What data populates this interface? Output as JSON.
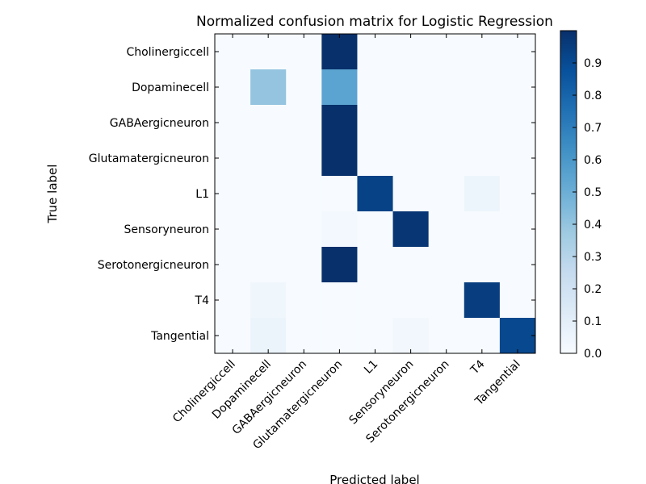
{
  "chart_data": {
    "type": "heatmap",
    "title": "Normalized confusion matrix for Logistic Regression",
    "xlabel": "Predicted label",
    "ylabel": "True label",
    "x_categories": [
      "Cholinergiccell",
      "Dopaminecell",
      "GABAergicneuron",
      "Glutamatergicneuron",
      "L1",
      "Sensoryneuron",
      "Serotonergicneuron",
      "T4",
      "Tangential"
    ],
    "y_categories": [
      "Cholinergiccell",
      "Dopaminecell",
      "GABAergicneuron",
      "Glutamatergicneuron",
      "L1",
      "Sensoryneuron",
      "Serotonergicneuron",
      "T4",
      "Tangential"
    ],
    "values": [
      [
        0,
        0,
        0,
        1.0,
        0,
        0,
        0,
        0,
        0
      ],
      [
        0,
        0.4,
        0,
        0.55,
        0,
        0,
        0,
        0,
        0
      ],
      [
        0,
        0,
        0,
        1.0,
        0,
        0,
        0,
        0,
        0
      ],
      [
        0,
        0,
        0,
        1.0,
        0,
        0,
        0,
        0,
        0
      ],
      [
        0,
        0,
        0,
        0,
        0.93,
        0,
        0,
        0.05,
        0
      ],
      [
        0,
        0,
        0,
        0.02,
        0,
        0.98,
        0,
        0,
        0
      ],
      [
        0,
        0,
        0,
        1.0,
        0,
        0,
        0,
        0,
        0
      ],
      [
        0,
        0.04,
        0,
        0,
        0,
        0,
        0,
        0.95,
        0
      ],
      [
        0,
        0.06,
        0,
        0,
        0,
        0.03,
        0,
        0,
        0.91
      ]
    ],
    "colorbar": {
      "colormap": "Blues",
      "range": [
        0,
        1.0
      ],
      "ticks": [
        "0.0",
        "0.1",
        "0.2",
        "0.3",
        "0.4",
        "0.5",
        "0.6",
        "0.7",
        "0.8",
        "0.9"
      ]
    }
  }
}
